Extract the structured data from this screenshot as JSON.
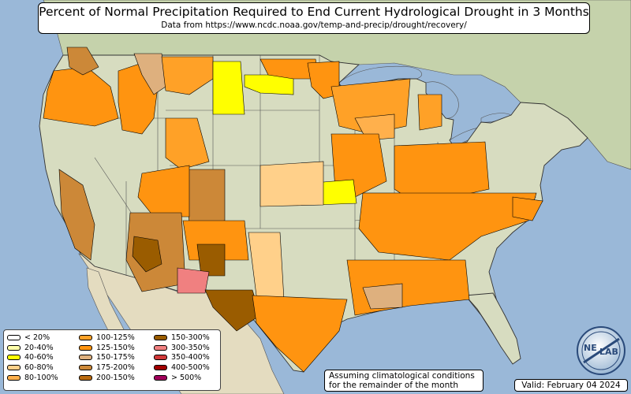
{
  "title": "Percent of Normal Precipitation Required to End Current Hydrological Drought in 3 Months",
  "subtitle": "Data from https://www.ncdc.noaa.gov/temp-and-precip/drought/recovery/",
  "legend": {
    "items": [
      {
        "label": "< 20%",
        "color": "#ffffff"
      },
      {
        "label": "20-40%",
        "color": "#ffffaa"
      },
      {
        "label": "40-60%",
        "color": "#ffff00"
      },
      {
        "label": "60-80%",
        "color": "#ffd08a"
      },
      {
        "label": "80-100%",
        "color": "#ffb04c"
      },
      {
        "label": "100-125%",
        "color": "#ffa127"
      },
      {
        "label": "125-150%",
        "color": "#ff9410"
      },
      {
        "label": "150-175%",
        "color": "#deb07e"
      },
      {
        "label": "175-200%",
        "color": "#cc8838"
      },
      {
        "label": "200-150%",
        "color": "#b96a10"
      },
      {
        "label": "150-300%",
        "color": "#9a5c00"
      },
      {
        "label": "300-350%",
        "color": "#f08080"
      },
      {
        "label": "350-400%",
        "color": "#d03838"
      },
      {
        "label": "400-500%",
        "color": "#a00000"
      },
      {
        "label": "> 500%",
        "color": "#a0005a"
      }
    ]
  },
  "assumption": {
    "line1": "Assuming climatological conditions",
    "line2": "for the remainder of the month"
  },
  "valid_label": "Valid: February 04 2024",
  "logo_text": {
    "top": "NE",
    "bottom": "LAB"
  },
  "colors": {
    "ocean": "#9ab8d8",
    "land": "#d7dcc0",
    "canada": "#c5d2ab",
    "mexico": "#e4dcc0",
    "lake": "#9ab8d8"
  }
}
